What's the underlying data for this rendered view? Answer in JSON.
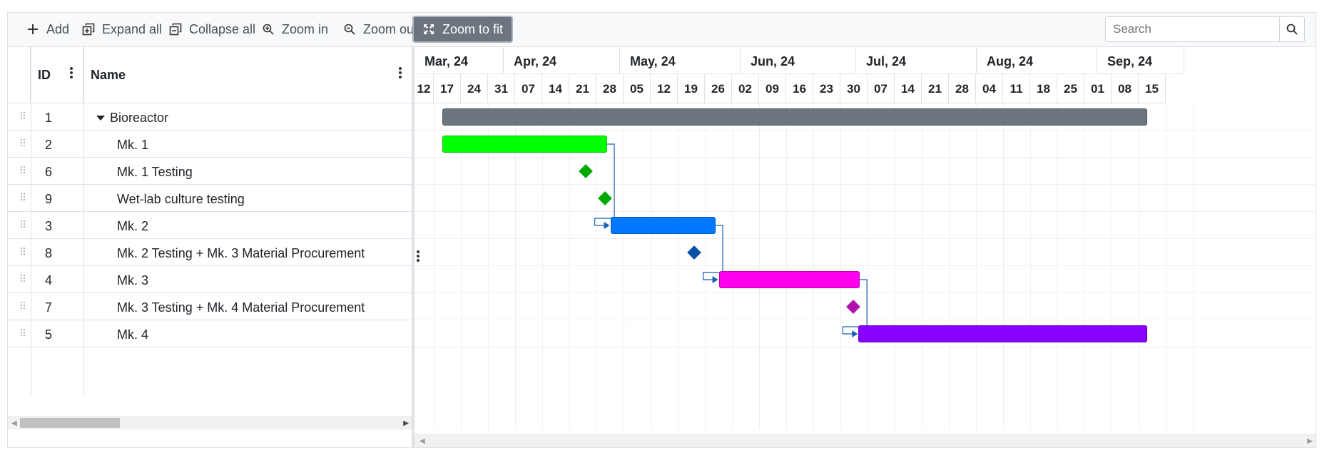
{
  "toolbar": {
    "add_label": "Add",
    "expand_all_label": "Expand all",
    "collapse_all_label": "Collapse all",
    "zoom_in_label": "Zoom in",
    "zoom_out_label": "Zoom out",
    "zoom_fit_label": "Zoom to fit",
    "search_placeholder": "Search"
  },
  "grid": {
    "columns": [
      {
        "label": "ID"
      },
      {
        "label": "Name"
      }
    ],
    "rows": [
      {
        "id": "1",
        "name": "Bioreactor",
        "level": 0,
        "expanded": true
      },
      {
        "id": "2",
        "name": "Mk. 1",
        "level": 1
      },
      {
        "id": "6",
        "name": "Mk. 1 Testing",
        "level": 1
      },
      {
        "id": "9",
        "name": "Wet-lab culture testing",
        "level": 1
      },
      {
        "id": "3",
        "name": "Mk. 2",
        "level": 1
      },
      {
        "id": "8",
        "name": "Mk. 2 Testing + Mk. 3 Material Procurement",
        "level": 1
      },
      {
        "id": "4",
        "name": "Mk. 3",
        "level": 1
      },
      {
        "id": "7",
        "name": "Mk. 3 Testing + Mk. 4 Material Procurement",
        "level": 1
      },
      {
        "id": "5",
        "name": "Mk. 4",
        "level": 1
      }
    ]
  },
  "timeline": {
    "months": [
      {
        "label": "Mar, 24",
        "weeks": 3.3
      },
      {
        "label": "Apr, 24",
        "weeks": 4.3
      },
      {
        "label": "May, 24",
        "weeks": 4.45
      },
      {
        "label": "Jun, 24",
        "weeks": 4.25
      },
      {
        "label": "Jul, 24",
        "weeks": 4.45
      },
      {
        "label": "Aug, 24",
        "weeks": 4.45
      },
      {
        "label": "Sep, 24",
        "weeks": 3.2
      }
    ],
    "weeks": [
      "12",
      "17",
      "24",
      "31",
      "07",
      "14",
      "21",
      "28",
      "05",
      "12",
      "19",
      "26",
      "02",
      "09",
      "16",
      "23",
      "30",
      "07",
      "14",
      "21",
      "28",
      "04",
      "11",
      "18",
      "25",
      "01",
      "08",
      "15"
    ]
  },
  "tasks": [
    {
      "row": 0,
      "type": "bar",
      "start": 1,
      "end": 27,
      "color": "#6c757d"
    },
    {
      "row": 1,
      "type": "bar",
      "start": 1,
      "end": 7.08,
      "color": "#00ff00"
    },
    {
      "row": 2,
      "type": "milestone",
      "at": 6.3,
      "color": "#00aa00"
    },
    {
      "row": 3,
      "type": "milestone",
      "at": 7.0,
      "color": "#00aa00"
    },
    {
      "row": 4,
      "type": "bar",
      "start": 7.2,
      "end": 11.08,
      "color": "#0077ff"
    },
    {
      "row": 5,
      "type": "milestone",
      "at": 10.3,
      "color": "#0a4fa8"
    },
    {
      "row": 6,
      "type": "bar",
      "start": 11.2,
      "end": 16.4,
      "color": "#ff00ee"
    },
    {
      "row": 7,
      "type": "milestone",
      "at": 16.15,
      "color": "#b010b0"
    },
    {
      "row": 8,
      "type": "bar",
      "start": 16.35,
      "end": 27,
      "color": "#8800ff"
    }
  ],
  "dependencies": [
    {
      "from_row": 1,
      "to_row": 4
    },
    {
      "from_row": 4,
      "to_row": 6
    },
    {
      "from_row": 6,
      "to_row": 8
    }
  ]
}
